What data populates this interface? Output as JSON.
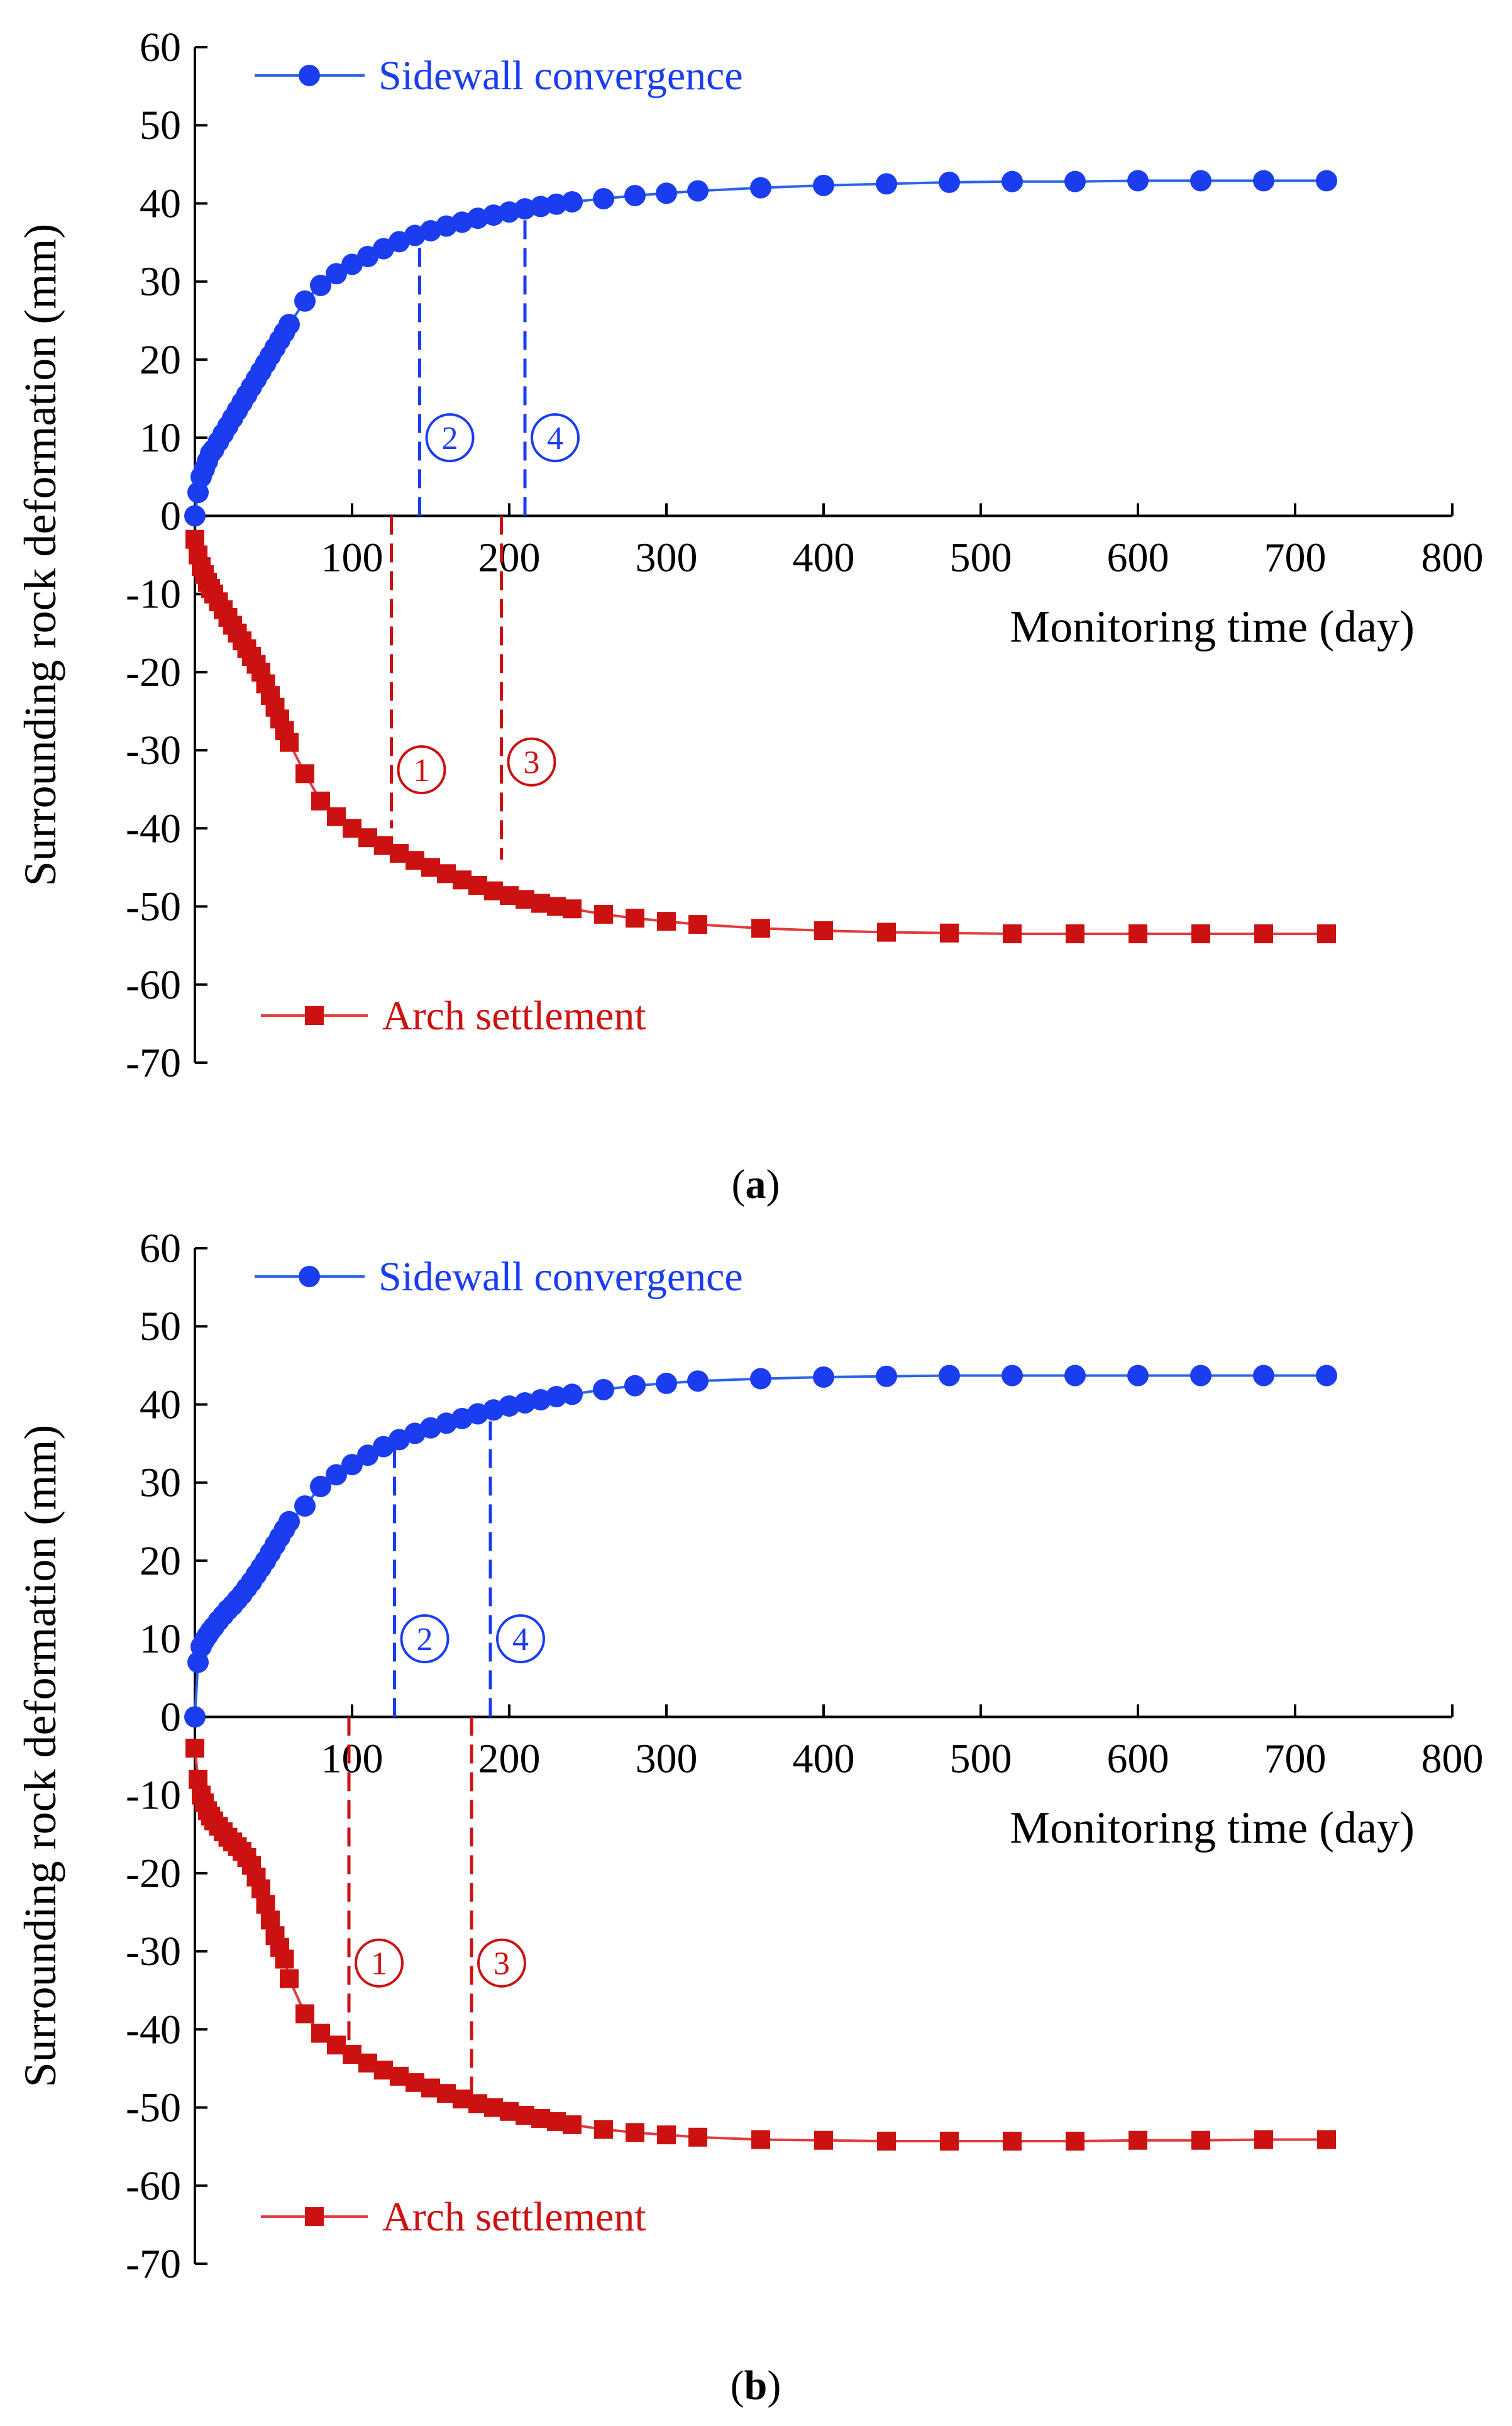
{
  "figure": {
    "ylabel": "Surrounding rock deformation (mm)",
    "xlabel": "Monitoring time (day)",
    "colors": {
      "sidewall": "#1a3df0",
      "sidewall_line": "#2a64e8",
      "arch": "#cc1111",
      "arch_line": "#e03c3c",
      "axis": "#000000"
    }
  },
  "chart_data": [
    {
      "type": "line",
      "panel": "a",
      "caption": "(a)",
      "caption_bold": "a",
      "xlabel": "Monitoring time (day)",
      "ylabel": "Surrounding rock deformation (mm)",
      "xlim": [
        0,
        800
      ],
      "ylim": [
        -70,
        60
      ],
      "xticks": [
        100,
        200,
        300,
        400,
        500,
        600,
        700,
        800
      ],
      "yticks": [
        60,
        50,
        40,
        30,
        20,
        10,
        0,
        -10,
        -20,
        -30,
        -40,
        -50,
        -60,
        -70
      ],
      "legend": {
        "sidewall": "top-left",
        "arch": "bottom-left"
      },
      "series": [
        {
          "name": "Sidewall convergence",
          "marker": "circle",
          "x": [
            0,
            2,
            4,
            6,
            8,
            10,
            12,
            15,
            18,
            21,
            24,
            27,
            30,
            33,
            36,
            39,
            42,
            45,
            48,
            51,
            54,
            57,
            60,
            70,
            80,
            90,
            100,
            110,
            120,
            130,
            140,
            150,
            160,
            170,
            180,
            190,
            200,
            210,
            220,
            230,
            240,
            260,
            280,
            300,
            320,
            360,
            400,
            440,
            480,
            520,
            560,
            600,
            640,
            680,
            720
          ],
          "values": [
            0,
            3,
            5,
            6,
            7,
            8,
            8.5,
            9.5,
            10.5,
            11.5,
            12.5,
            13.5,
            14.5,
            15.5,
            16.5,
            17.5,
            18.5,
            19.5,
            20.5,
            21.5,
            22.5,
            23.5,
            24.5,
            27.5,
            29.5,
            31,
            32.2,
            33.2,
            34.2,
            35.1,
            35.9,
            36.5,
            37.1,
            37.6,
            38.1,
            38.5,
            38.9,
            39.3,
            39.6,
            39.9,
            40.2,
            40.6,
            41,
            41.3,
            41.6,
            42,
            42.3,
            42.5,
            42.7,
            42.8,
            42.8,
            42.9,
            42.9,
            42.9,
            42.9
          ]
        },
        {
          "name": "Arch settlement",
          "marker": "square",
          "x": [
            0,
            2,
            4,
            6,
            8,
            10,
            12,
            15,
            18,
            21,
            24,
            27,
            30,
            33,
            36,
            39,
            42,
            45,
            48,
            51,
            54,
            57,
            60,
            70,
            80,
            90,
            100,
            110,
            120,
            130,
            140,
            150,
            160,
            170,
            180,
            190,
            200,
            210,
            220,
            230,
            240,
            260,
            280,
            300,
            320,
            360,
            400,
            440,
            480,
            520,
            560,
            600,
            640,
            680,
            720
          ],
          "values": [
            -3,
            -5,
            -6.5,
            -7.5,
            -8.5,
            -9.3,
            -10,
            -11,
            -12,
            -13,
            -14,
            -15,
            -16,
            -17,
            -18,
            -19,
            -20,
            -21.5,
            -23,
            -24.5,
            -26,
            -27.5,
            -29,
            -33,
            -36.5,
            -38.5,
            -40,
            -41.2,
            -42.2,
            -43.2,
            -44.1,
            -45,
            -45.8,
            -46.6,
            -47.3,
            -48,
            -48.6,
            -49.1,
            -49.6,
            -50,
            -50.3,
            -51,
            -51.5,
            -51.9,
            -52.3,
            -52.8,
            -53.1,
            -53.3,
            -53.4,
            -53.5,
            -53.5,
            -53.5,
            -53.5,
            -53.5,
            -53.5
          ]
        }
      ],
      "markers": [
        {
          "label": "②",
          "x": 143,
          "color": "blue",
          "y_from": 0,
          "y_to": 35
        },
        {
          "label": "④",
          "x": 210,
          "color": "blue",
          "y_from": 0,
          "y_to": 38.8
        },
        {
          "label": "①",
          "x": 125,
          "color": "red",
          "y_from": 0,
          "y_to": -40
        },
        {
          "label": "③",
          "x": 195,
          "color": "red",
          "y_from": 0,
          "y_to": -44
        }
      ]
    },
    {
      "type": "line",
      "panel": "b",
      "caption": "(b)",
      "caption_bold": "b",
      "xlabel": "Monitoring time (day)",
      "ylabel": "Surrounding rock deformation (mm)",
      "xlim": [
        0,
        800
      ],
      "ylim": [
        -70,
        60
      ],
      "xticks": [
        100,
        200,
        300,
        400,
        500,
        600,
        700,
        800
      ],
      "yticks": [
        60,
        50,
        40,
        30,
        20,
        10,
        0,
        -10,
        -20,
        -30,
        -40,
        -50,
        -60,
        -70
      ],
      "legend": {
        "sidewall": "top-left",
        "arch": "bottom-left"
      },
      "series": [
        {
          "name": "Sidewall convergence",
          "marker": "circle",
          "x": [
            0,
            2,
            4,
            6,
            8,
            10,
            12,
            15,
            18,
            21,
            24,
            27,
            30,
            33,
            36,
            39,
            42,
            45,
            48,
            51,
            54,
            57,
            60,
            70,
            80,
            90,
            100,
            110,
            120,
            130,
            140,
            150,
            160,
            170,
            180,
            190,
            200,
            210,
            220,
            230,
            240,
            260,
            280,
            300,
            320,
            360,
            400,
            440,
            480,
            520,
            560,
            600,
            640,
            680,
            720
          ],
          "values": [
            0,
            7,
            9,
            9.8,
            10.4,
            11,
            11.5,
            12.3,
            13,
            13.7,
            14.3,
            15,
            15.7,
            16.5,
            17.3,
            18.2,
            19.1,
            20,
            21,
            22,
            23,
            24,
            25,
            27,
            29.5,
            31,
            32.3,
            33.5,
            34.6,
            35.5,
            36.3,
            37,
            37.6,
            38.2,
            38.8,
            39.3,
            39.8,
            40.2,
            40.6,
            41,
            41.3,
            41.9,
            42.4,
            42.7,
            43,
            43.3,
            43.5,
            43.6,
            43.7,
            43.7,
            43.7,
            43.7,
            43.7,
            43.7,
            43.7
          ]
        },
        {
          "name": "Arch settlement",
          "marker": "square",
          "x": [
            0,
            2,
            4,
            6,
            8,
            10,
            12,
            15,
            18,
            21,
            24,
            27,
            30,
            33,
            36,
            39,
            42,
            45,
            48,
            51,
            54,
            57,
            60,
            70,
            80,
            90,
            100,
            110,
            120,
            130,
            140,
            150,
            160,
            170,
            180,
            190,
            200,
            210,
            220,
            230,
            240,
            260,
            280,
            300,
            320,
            360,
            400,
            440,
            480,
            520,
            560,
            600,
            640,
            680,
            720
          ],
          "values": [
            -4,
            -8,
            -10,
            -11,
            -12,
            -12.7,
            -13.3,
            -14,
            -14.7,
            -15.4,
            -16,
            -16.6,
            -17.2,
            -18,
            -19,
            -20.5,
            -22,
            -24,
            -26,
            -28,
            -29.5,
            -31,
            -33.5,
            -38,
            -40.5,
            -42,
            -43.2,
            -44.3,
            -45.2,
            -46,
            -46.8,
            -47.5,
            -48.2,
            -48.9,
            -49.5,
            -50,
            -50.5,
            -51,
            -51.4,
            -51.8,
            -52.2,
            -52.8,
            -53.2,
            -53.5,
            -53.8,
            -54.1,
            -54.2,
            -54.3,
            -54.3,
            -54.3,
            -54.3,
            -54.2,
            -54.2,
            -54.1,
            -54.1
          ]
        }
      ],
      "markers": [
        {
          "label": "②",
          "x": 127,
          "color": "blue",
          "y_from": 0,
          "y_to": 35.3
        },
        {
          "label": "④",
          "x": 188,
          "color": "blue",
          "y_from": 0,
          "y_to": 39.3
        },
        {
          "label": "①",
          "x": 98,
          "color": "red",
          "y_from": 0,
          "y_to": -43
        },
        {
          "label": "③",
          "x": 176,
          "color": "red",
          "y_from": 0,
          "y_to": -48.6
        }
      ]
    }
  ]
}
